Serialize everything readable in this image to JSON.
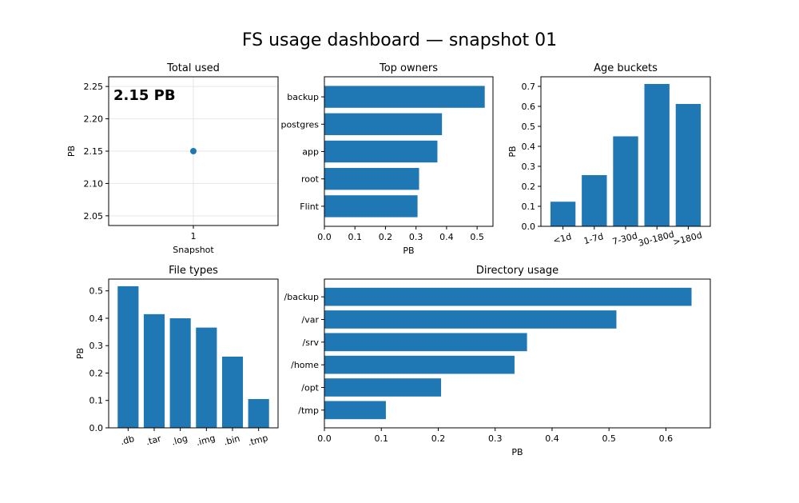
{
  "title": "FS usage dashboard — snapshot 01",
  "bar_color": "#1f77b4",
  "chart_data": [
    {
      "id": "total",
      "type": "scatter",
      "title": "Total used",
      "xlabel": "Snapshot",
      "ylabel": "PB",
      "x": [
        1
      ],
      "y": [
        2.15
      ],
      "annotation": "2.15 PB",
      "xticks": [
        "1"
      ],
      "yticks": [
        2.05,
        2.1,
        2.15,
        2.2,
        2.25
      ],
      "ylim": [
        2.035,
        2.265
      ],
      "grid": true
    },
    {
      "id": "owners",
      "type": "bar",
      "orientation": "horizontal",
      "title": "Top owners",
      "xlabel": "PB",
      "categories": [
        "backup",
        "postgres",
        "app",
        "root",
        "Flint"
      ],
      "values": [
        0.525,
        0.385,
        0.37,
        0.31,
        0.305
      ],
      "xticks": [
        0,
        0.1,
        0.2,
        0.3,
        0.4,
        0.5
      ],
      "xlim": [
        0,
        0.552
      ]
    },
    {
      "id": "age",
      "type": "bar",
      "title": "Age buckets",
      "ylabel": "PB",
      "categories": [
        "<1d",
        "1-7d",
        "7-30d",
        "30-180d",
        ">180d"
      ],
      "values": [
        0.123,
        0.256,
        0.45,
        0.712,
        0.612
      ],
      "yticks": [
        0,
        0.1,
        0.2,
        0.3,
        0.4,
        0.5,
        0.6,
        0.7
      ],
      "ylim": [
        0,
        0.748
      ]
    },
    {
      "id": "types",
      "type": "bar",
      "title": "File types",
      "ylabel": "PB",
      "categories": [
        ".db",
        ".tar",
        ".log",
        ".img",
        ".bin",
        ".tmp"
      ],
      "values": [
        0.517,
        0.415,
        0.4,
        0.366,
        0.26,
        0.105
      ],
      "yticks": [
        0,
        0.1,
        0.2,
        0.3,
        0.4,
        0.5
      ],
      "ylim": [
        0,
        0.543
      ]
    },
    {
      "id": "dirs",
      "type": "bar",
      "orientation": "horizontal",
      "title": "Directory usage",
      "xlabel": "PB",
      "categories": [
        "/backup",
        "/var",
        "/srv",
        "/home",
        "/opt",
        "/tmp"
      ],
      "values": [
        0.645,
        0.513,
        0.356,
        0.334,
        0.205,
        0.108
      ],
      "xticks": [
        0,
        0.1,
        0.2,
        0.3,
        0.4,
        0.5,
        0.6
      ],
      "xlim": [
        0,
        0.678
      ]
    }
  ]
}
